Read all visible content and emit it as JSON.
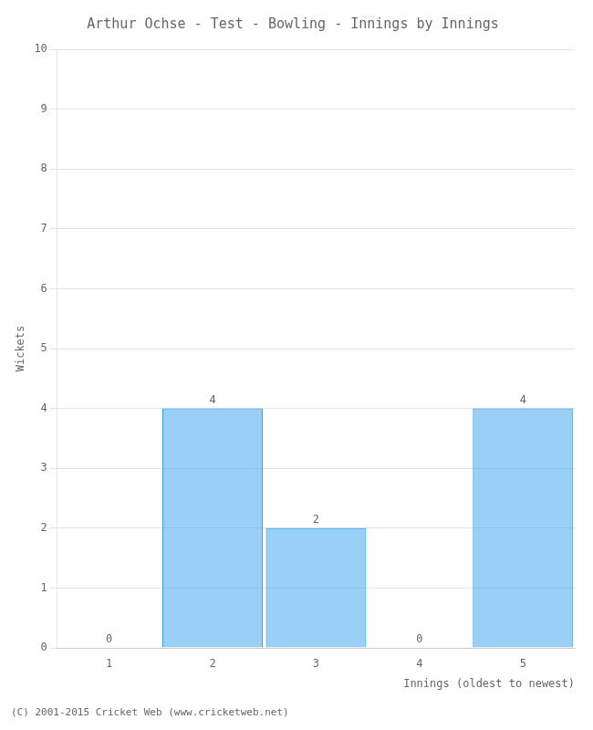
{
  "chart_data": {
    "type": "bar",
    "title": "Arthur Ochse - Test - Bowling - Innings by Innings",
    "xlabel": "Innings (oldest to newest)",
    "ylabel": "Wickets",
    "categories": [
      1,
      2,
      3,
      4,
      5
    ],
    "values": [
      0,
      4,
      2,
      0,
      4
    ],
    "ylim": [
      0,
      10
    ],
    "yticks": [
      0,
      1,
      2,
      3,
      4,
      5,
      6,
      7,
      8,
      9,
      10
    ],
    "grid": true,
    "data_labels": true,
    "footer": "(C) 2001-2015 Cricket Web (www.cricketweb.net)"
  }
}
